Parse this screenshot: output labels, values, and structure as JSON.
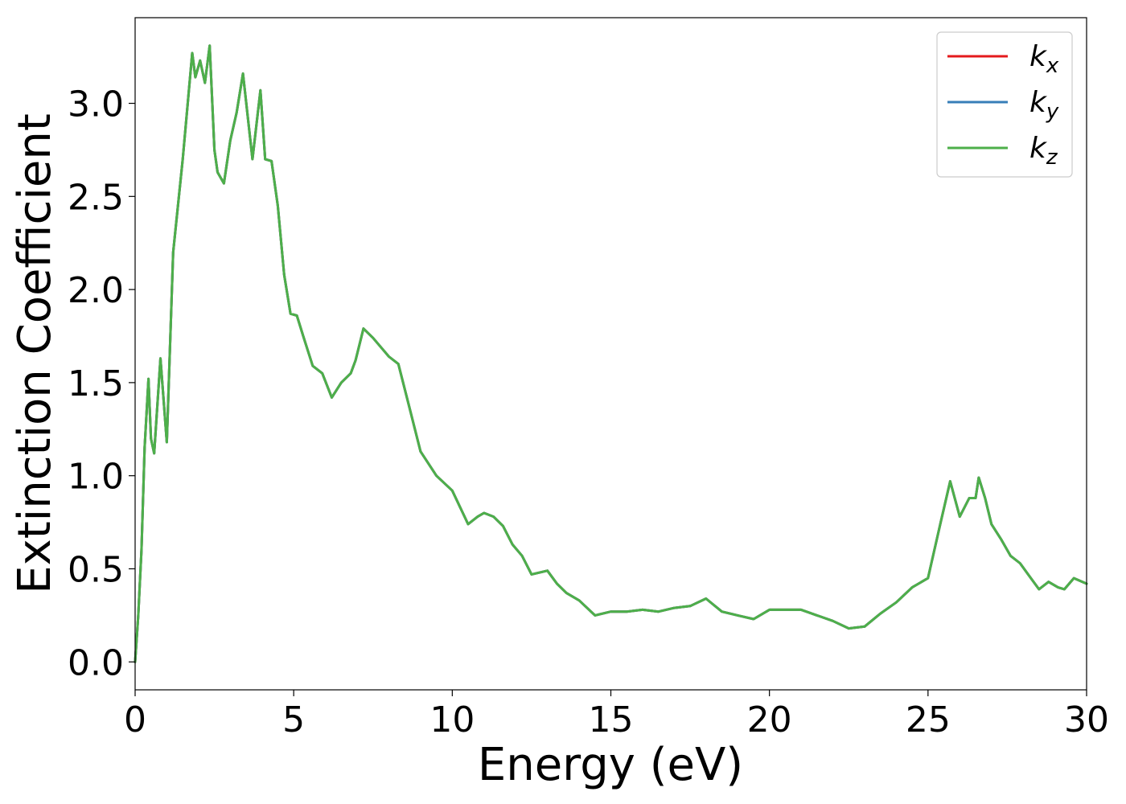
{
  "chart_data": {
    "type": "line",
    "title": "",
    "xlabel": "Energy (eV)",
    "ylabel": "Extinction Coefficient",
    "xlim": [
      0,
      30
    ],
    "ylim": [
      -0.15,
      3.46
    ],
    "xticks": [
      0,
      5,
      10,
      15,
      20,
      25,
      30
    ],
    "xtick_labels": [
      "0",
      "5",
      "10",
      "15",
      "20",
      "25",
      "30"
    ],
    "yticks": [
      0.0,
      0.5,
      1.0,
      1.5,
      2.0,
      2.5,
      3.0
    ],
    "ytick_labels": [
      "0.0",
      "0.5",
      "1.0",
      "1.5",
      "2.0",
      "2.5",
      "3.0"
    ],
    "grid": false,
    "legend_position": "top-right",
    "x": [
      0,
      0.1,
      0.2,
      0.3,
      0.42,
      0.5,
      0.6,
      0.8,
      1.0,
      1.2,
      1.5,
      1.8,
      1.9,
      2.05,
      2.2,
      2.35,
      2.5,
      2.6,
      2.8,
      3.0,
      3.2,
      3.4,
      3.7,
      3.95,
      4.1,
      4.3,
      4.5,
      4.7,
      4.9,
      5.1,
      5.3,
      5.6,
      5.9,
      6.2,
      6.5,
      6.8,
      6.95,
      7.2,
      7.5,
      7.8,
      8.0,
      8.3,
      8.6,
      9.0,
      9.5,
      10.0,
      10.5,
      10.8,
      11.0,
      11.3,
      11.6,
      11.9,
      12.2,
      12.5,
      13.0,
      13.3,
      13.6,
      14.0,
      14.5,
      15.0,
      15.5,
      16.0,
      16.5,
      17.0,
      17.5,
      18.0,
      18.5,
      19.0,
      19.5,
      20.0,
      20.5,
      21.0,
      21.5,
      22.0,
      22.5,
      23.0,
      23.5,
      24.0,
      24.5,
      25.0,
      25.4,
      25.7,
      26.0,
      26.3,
      26.5,
      26.6,
      26.8,
      27.0,
      27.3,
      27.6,
      27.9,
      28.2,
      28.5,
      28.8,
      29.1,
      29.3,
      29.6,
      30.0
    ],
    "series": [
      {
        "name": "k_x",
        "label_base": "k",
        "label_sub": "x",
        "color": "#e41a1c",
        "values": [
          0.0,
          0.25,
          0.6,
          1.15,
          1.52,
          1.2,
          1.12,
          1.63,
          1.18,
          2.2,
          2.7,
          3.27,
          3.14,
          3.23,
          3.11,
          3.31,
          2.75,
          2.63,
          2.57,
          2.8,
          2.95,
          3.16,
          2.7,
          3.07,
          2.7,
          2.69,
          2.45,
          2.08,
          1.87,
          1.86,
          1.75,
          1.59,
          1.55,
          1.42,
          1.5,
          1.55,
          1.62,
          1.79,
          1.74,
          1.68,
          1.64,
          1.6,
          1.4,
          1.13,
          1.0,
          0.92,
          0.74,
          0.78,
          0.8,
          0.78,
          0.73,
          0.63,
          0.57,
          0.47,
          0.49,
          0.42,
          0.37,
          0.33,
          0.25,
          0.27,
          0.27,
          0.28,
          0.27,
          0.29,
          0.3,
          0.34,
          0.27,
          0.25,
          0.23,
          0.28,
          0.28,
          0.28,
          0.25,
          0.22,
          0.18,
          0.19,
          0.26,
          0.32,
          0.4,
          0.45,
          0.75,
          0.97,
          0.78,
          0.88,
          0.88,
          0.99,
          0.88,
          0.74,
          0.66,
          0.57,
          0.53,
          0.46,
          0.39,
          0.43,
          0.4,
          0.39,
          0.45,
          0.42
        ]
      },
      {
        "name": "k_y",
        "label_base": "k",
        "label_sub": "y",
        "color": "#377eb8",
        "values": [
          0.0,
          0.25,
          0.6,
          1.15,
          1.52,
          1.2,
          1.12,
          1.63,
          1.18,
          2.2,
          2.7,
          3.27,
          3.14,
          3.23,
          3.11,
          3.31,
          2.75,
          2.63,
          2.57,
          2.8,
          2.95,
          3.16,
          2.7,
          3.07,
          2.7,
          2.69,
          2.45,
          2.08,
          1.87,
          1.86,
          1.75,
          1.59,
          1.55,
          1.42,
          1.5,
          1.55,
          1.62,
          1.79,
          1.74,
          1.68,
          1.64,
          1.6,
          1.4,
          1.13,
          1.0,
          0.92,
          0.74,
          0.78,
          0.8,
          0.78,
          0.73,
          0.63,
          0.57,
          0.47,
          0.49,
          0.42,
          0.37,
          0.33,
          0.25,
          0.27,
          0.27,
          0.28,
          0.27,
          0.29,
          0.3,
          0.34,
          0.27,
          0.25,
          0.23,
          0.28,
          0.28,
          0.28,
          0.25,
          0.22,
          0.18,
          0.19,
          0.26,
          0.32,
          0.4,
          0.45,
          0.75,
          0.97,
          0.78,
          0.88,
          0.88,
          0.99,
          0.88,
          0.74,
          0.66,
          0.57,
          0.53,
          0.46,
          0.39,
          0.43,
          0.4,
          0.39,
          0.45,
          0.42
        ]
      },
      {
        "name": "k_z",
        "label_base": "k",
        "label_sub": "z",
        "color": "#4daf4a",
        "values": [
          0.0,
          0.25,
          0.6,
          1.15,
          1.52,
          1.2,
          1.12,
          1.63,
          1.18,
          2.2,
          2.7,
          3.27,
          3.14,
          3.23,
          3.11,
          3.31,
          2.75,
          2.63,
          2.57,
          2.8,
          2.95,
          3.16,
          2.7,
          3.07,
          2.7,
          2.69,
          2.45,
          2.08,
          1.87,
          1.86,
          1.75,
          1.59,
          1.55,
          1.42,
          1.5,
          1.55,
          1.62,
          1.79,
          1.74,
          1.68,
          1.64,
          1.6,
          1.4,
          1.13,
          1.0,
          0.92,
          0.74,
          0.78,
          0.8,
          0.78,
          0.73,
          0.63,
          0.57,
          0.47,
          0.49,
          0.42,
          0.37,
          0.33,
          0.25,
          0.27,
          0.27,
          0.28,
          0.27,
          0.29,
          0.3,
          0.34,
          0.27,
          0.25,
          0.23,
          0.28,
          0.28,
          0.28,
          0.25,
          0.22,
          0.18,
          0.19,
          0.26,
          0.32,
          0.4,
          0.45,
          0.75,
          0.97,
          0.78,
          0.88,
          0.88,
          0.99,
          0.88,
          0.74,
          0.66,
          0.57,
          0.53,
          0.46,
          0.39,
          0.43,
          0.4,
          0.39,
          0.45,
          0.42
        ]
      }
    ]
  }
}
